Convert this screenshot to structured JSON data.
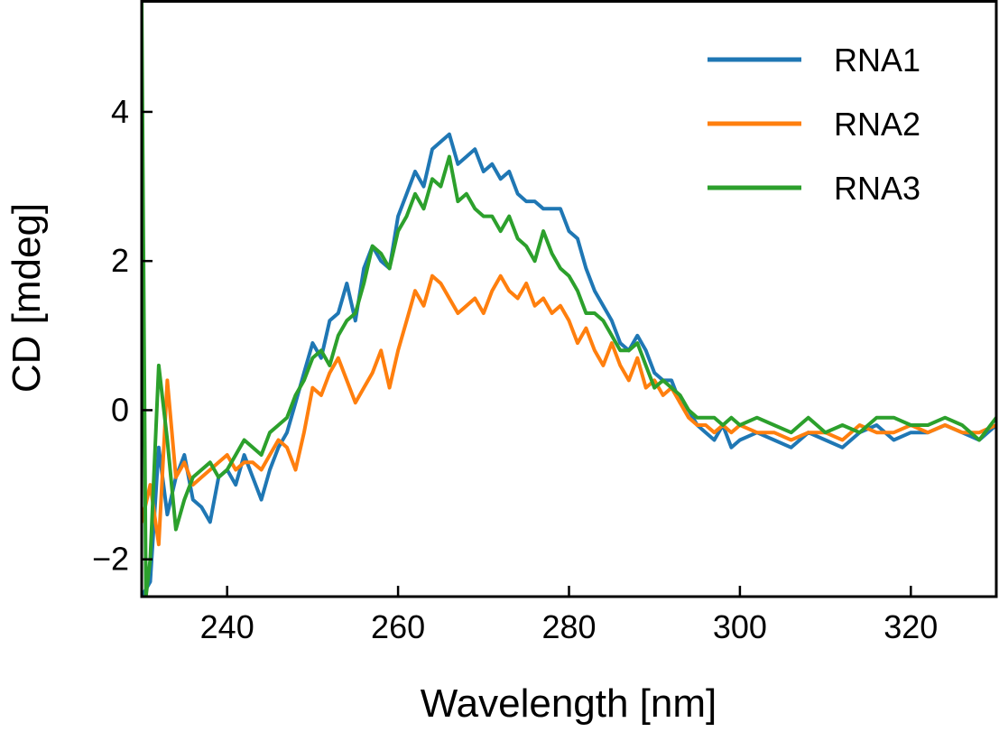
{
  "chart_data": {
    "type": "line",
    "title": "",
    "xlabel": "Wavelength [nm]",
    "ylabel": "CD [mdeg]",
    "xlim": [
      230,
      330
    ],
    "ylim": [
      -2.5,
      5.5
    ],
    "xticks": [
      240,
      260,
      280,
      300,
      320
    ],
    "yticks": [
      -2,
      0,
      2,
      4
    ],
    "ytick_labels": [
      "−2",
      "0",
      "2",
      "4"
    ],
    "grid": false,
    "legend_position": "top-right",
    "colors": {
      "RNA1": "#1f77b4",
      "RNA2": "#ff7f0e",
      "RNA3": "#2ca02c"
    },
    "series": [
      {
        "name": "RNA1",
        "x": [
          230,
          231,
          232,
          233,
          234,
          235,
          236,
          237,
          238,
          239,
          240,
          241,
          242,
          243,
          244,
          245,
          246,
          247,
          248,
          249,
          250,
          251,
          252,
          253,
          254,
          255,
          256,
          257,
          258,
          259,
          260,
          261,
          262,
          263,
          264,
          265,
          266,
          267,
          268,
          269,
          270,
          271,
          272,
          273,
          274,
          275,
          276,
          277,
          278,
          279,
          280,
          281,
          282,
          283,
          284,
          285,
          286,
          287,
          288,
          289,
          290,
          291,
          292,
          293,
          294,
          295,
          296,
          297,
          298,
          299,
          300,
          302,
          304,
          306,
          308,
          310,
          312,
          314,
          316,
          318,
          320,
          322,
          324,
          326,
          328,
          330
        ],
        "y": [
          -2.5,
          -2.3,
          -0.5,
          -1.4,
          -0.9,
          -0.6,
          -1.2,
          -1.3,
          -1.5,
          -0.9,
          -0.8,
          -1.0,
          -0.6,
          -0.9,
          -1.2,
          -0.8,
          -0.5,
          -0.3,
          0.1,
          0.5,
          0.9,
          0.7,
          1.2,
          1.3,
          1.7,
          1.2,
          1.9,
          2.2,
          2.0,
          1.9,
          2.6,
          2.9,
          3.2,
          3.0,
          3.5,
          3.6,
          3.7,
          3.3,
          3.4,
          3.5,
          3.2,
          3.3,
          3.1,
          3.2,
          2.9,
          2.8,
          2.8,
          2.7,
          2.7,
          2.7,
          2.4,
          2.3,
          1.9,
          1.6,
          1.4,
          1.2,
          0.9,
          0.8,
          1.0,
          0.8,
          0.5,
          0.4,
          0.4,
          0.1,
          0.0,
          -0.2,
          -0.3,
          -0.4,
          -0.2,
          -0.5,
          -0.4,
          -0.3,
          -0.4,
          -0.5,
          -0.3,
          -0.4,
          -0.5,
          -0.3,
          -0.2,
          -0.4,
          -0.3,
          -0.3,
          -0.2,
          -0.3,
          -0.4,
          -0.2
        ]
      },
      {
        "name": "RNA2",
        "x": [
          230,
          231,
          232,
          233,
          234,
          235,
          236,
          237,
          238,
          239,
          240,
          241,
          242,
          243,
          244,
          245,
          246,
          247,
          248,
          249,
          250,
          251,
          252,
          253,
          254,
          255,
          256,
          257,
          258,
          259,
          260,
          261,
          262,
          263,
          264,
          265,
          266,
          267,
          268,
          269,
          270,
          271,
          272,
          273,
          274,
          275,
          276,
          277,
          278,
          279,
          280,
          281,
          282,
          283,
          284,
          285,
          286,
          287,
          288,
          289,
          290,
          291,
          292,
          293,
          294,
          295,
          296,
          297,
          298,
          299,
          300,
          302,
          304,
          306,
          308,
          310,
          312,
          314,
          316,
          318,
          320,
          322,
          324,
          326,
          328,
          330
        ],
        "y": [
          -1.5,
          -1.0,
          -1.8,
          0.4,
          -0.9,
          -0.7,
          -1.0,
          -0.9,
          -0.8,
          -0.7,
          -0.6,
          -0.8,
          -0.7,
          -0.7,
          -0.8,
          -0.6,
          -0.4,
          -0.5,
          -0.8,
          -0.3,
          0.3,
          0.2,
          0.5,
          0.7,
          0.4,
          0.1,
          0.3,
          0.5,
          0.8,
          0.3,
          0.8,
          1.2,
          1.6,
          1.4,
          1.8,
          1.7,
          1.5,
          1.3,
          1.4,
          1.5,
          1.3,
          1.6,
          1.8,
          1.6,
          1.5,
          1.7,
          1.4,
          1.5,
          1.3,
          1.4,
          1.2,
          0.9,
          1.1,
          0.8,
          0.6,
          0.9,
          0.6,
          0.4,
          0.7,
          0.3,
          0.4,
          0.2,
          0.3,
          0.1,
          -0.1,
          -0.2,
          -0.2,
          -0.3,
          -0.2,
          -0.3,
          -0.2,
          -0.3,
          -0.3,
          -0.4,
          -0.3,
          -0.3,
          -0.4,
          -0.2,
          -0.3,
          -0.3,
          -0.2,
          -0.3,
          -0.2,
          -0.3,
          -0.3,
          -0.2
        ]
      },
      {
        "name": "RNA3",
        "x": [
          230,
          230.5,
          231,
          232,
          233,
          234,
          235,
          236,
          237,
          238,
          239,
          240,
          241,
          242,
          243,
          244,
          245,
          246,
          247,
          248,
          249,
          250,
          251,
          252,
          253,
          254,
          255,
          256,
          257,
          258,
          259,
          260,
          261,
          262,
          263,
          264,
          265,
          266,
          267,
          268,
          269,
          270,
          271,
          272,
          273,
          274,
          275,
          276,
          277,
          278,
          279,
          280,
          281,
          282,
          283,
          284,
          285,
          286,
          287,
          288,
          289,
          290,
          291,
          292,
          293,
          294,
          295,
          296,
          297,
          298,
          299,
          300,
          302,
          304,
          306,
          308,
          310,
          312,
          314,
          316,
          318,
          320,
          322,
          324,
          326,
          328,
          330
        ],
        "y": [
          5.5,
          -2.5,
          -2.0,
          0.6,
          -0.4,
          -1.6,
          -1.2,
          -0.9,
          -0.8,
          -0.7,
          -0.9,
          -0.8,
          -0.6,
          -0.4,
          -0.5,
          -0.6,
          -0.3,
          -0.2,
          -0.1,
          0.2,
          0.4,
          0.7,
          0.8,
          0.6,
          1.0,
          1.2,
          1.3,
          1.7,
          2.2,
          2.1,
          1.9,
          2.4,
          2.6,
          2.9,
          2.7,
          3.1,
          3.0,
          3.4,
          2.8,
          2.9,
          2.7,
          2.6,
          2.6,
          2.4,
          2.6,
          2.3,
          2.2,
          2.0,
          2.4,
          2.1,
          1.9,
          1.8,
          1.6,
          1.3,
          1.3,
          1.2,
          1.0,
          0.8,
          0.8,
          0.9,
          0.6,
          0.3,
          0.4,
          0.3,
          0.2,
          0.0,
          -0.1,
          -0.1,
          -0.1,
          -0.2,
          -0.1,
          -0.2,
          -0.1,
          -0.2,
          -0.3,
          -0.1,
          -0.3,
          -0.2,
          -0.3,
          -0.1,
          -0.1,
          -0.2,
          -0.2,
          -0.1,
          -0.2,
          -0.4,
          -0.1
        ]
      }
    ]
  }
}
